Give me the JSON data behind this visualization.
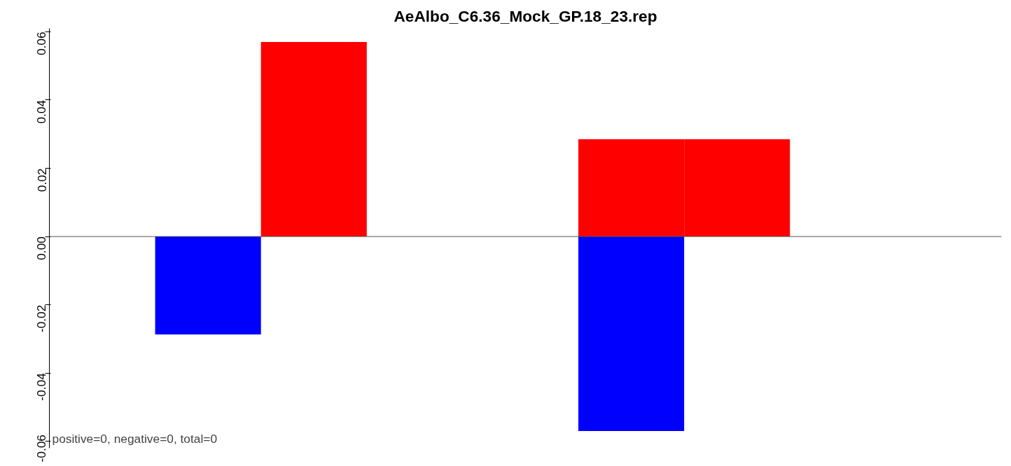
{
  "chart_data": {
    "type": "bar",
    "title": "AeAlbo_C6.36_Mock_GP.18_23.rep",
    "categories": [
      null,
      null,
      null,
      null,
      null,
      null,
      null,
      null,
      null
    ],
    "series": [
      {
        "color": "#0000ff",
        "values": [
          null,
          -0.0287,
          null,
          null,
          null,
          -0.057,
          null,
          null,
          null
        ]
      },
      {
        "color": "#ff0000",
        "values": [
          null,
          null,
          0.057,
          null,
          null,
          0.0285,
          0.0285,
          null,
          null
        ]
      }
    ],
    "ylim": [
      -0.062,
      0.061
    ],
    "yticks": [
      {
        "value": -0.06,
        "label": "-0.06"
      },
      {
        "value": -0.04,
        "label": "-0.04"
      },
      {
        "value": -0.02,
        "label": "-0.02"
      },
      {
        "value": 0,
        "label": "0.00"
      },
      {
        "value": 0.02,
        "label": "0.02"
      },
      {
        "value": 0.04,
        "label": "0.04"
      },
      {
        "value": 0.06,
        "label": "0.06"
      }
    ],
    "ref_lines": [
      {
        "axis": "y",
        "value": 0,
        "color": "#555555"
      }
    ],
    "annotations": [
      "positive=0, negative=0, total=0"
    ],
    "tick_labels": "y"
  }
}
